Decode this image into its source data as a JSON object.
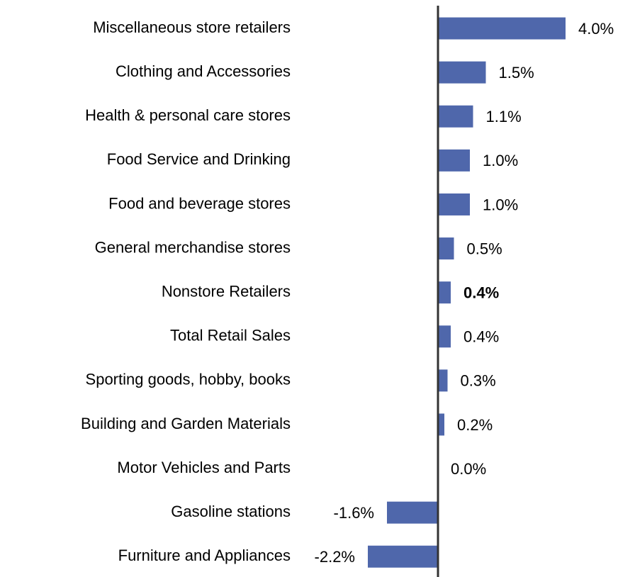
{
  "chart_data": {
    "type": "barh",
    "categories": [
      "Miscellaneous store retailers",
      "Clothing and Accessories",
      "Health & personal care stores",
      "Food Service and Drinking",
      "Food and beverage stores",
      "General merchandise stores",
      "Nonstore Retailers",
      "Total Retail Sales",
      "Sporting goods, hobby, books",
      "Building and Garden Materials",
      "Motor Vehicles and Parts",
      "Gasoline stations",
      "Furniture and Appliances"
    ],
    "values": [
      4.0,
      1.5,
      1.1,
      1.0,
      1.0,
      0.5,
      0.4,
      0.4,
      0.3,
      0.2,
      0.0,
      -1.6,
      -2.2
    ],
    "value_labels": [
      "4.0%",
      "1.5%",
      "1.1%",
      "1.0%",
      "1.0%",
      "0.5%",
      "0.4%",
      "0.4%",
      "0.3%",
      "0.2%",
      "0.0%",
      "-1.6%",
      "-2.2%"
    ],
    "bold_value_label_index": 6,
    "color": "#4f67ab",
    "xlim": [
      -2.2,
      4.0
    ]
  }
}
